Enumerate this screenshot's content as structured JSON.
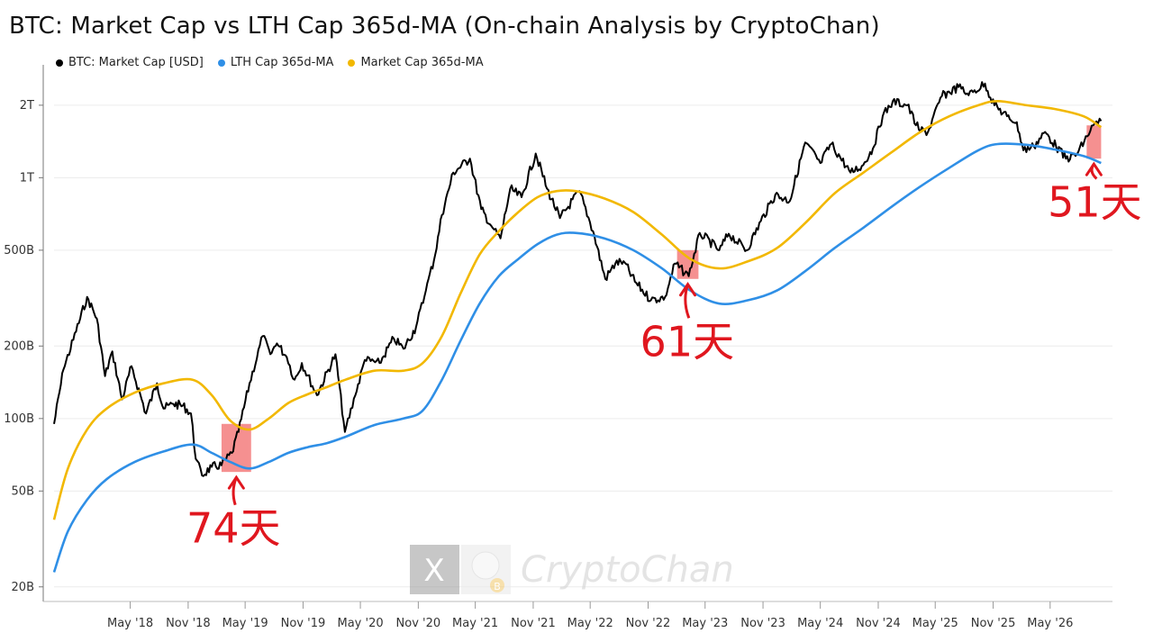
{
  "chart_data": {
    "type": "line",
    "title": "BTC: Market Cap vs LTH Cap 365d-MA (On-chain Analysis by CryptoChan)",
    "y_scale": "log",
    "ylim": [
      18000000000,
      2700000000000
    ],
    "xlim": [
      "2017-09-01",
      "2026-11-15"
    ],
    "grid": true,
    "legend_position": "top-left",
    "y_ticks": [
      {
        "value": 20000000000,
        "label": "20B"
      },
      {
        "value": 50000000000,
        "label": "50B"
      },
      {
        "value": 100000000000,
        "label": "100B"
      },
      {
        "value": 200000000000,
        "label": "200B"
      },
      {
        "value": 500000000000,
        "label": "500B"
      },
      {
        "value": 1000000000000,
        "label": "1T"
      },
      {
        "value": 2000000000000,
        "label": "2T"
      }
    ],
    "x_ticks": [
      {
        "value": "2018-05-01",
        "label": "May '18"
      },
      {
        "value": "2018-11-01",
        "label": "Nov '18"
      },
      {
        "value": "2019-05-01",
        "label": "May '19"
      },
      {
        "value": "2019-11-01",
        "label": "Nov '19"
      },
      {
        "value": "2020-05-01",
        "label": "May '20"
      },
      {
        "value": "2020-11-01",
        "label": "Nov '20"
      },
      {
        "value": "2021-05-01",
        "label": "May '21"
      },
      {
        "value": "2021-11-01",
        "label": "Nov '21"
      },
      {
        "value": "2022-05-01",
        "label": "May '22"
      },
      {
        "value": "2022-11-01",
        "label": "Nov '22"
      },
      {
        "value": "2023-05-01",
        "label": "May '23"
      },
      {
        "value": "2023-11-01",
        "label": "Nov '23"
      },
      {
        "value": "2024-05-01",
        "label": "May '24"
      },
      {
        "value": "2024-11-01",
        "label": "Nov '24"
      },
      {
        "value": "2025-05-01",
        "label": "May '25"
      },
      {
        "value": "2025-11-01",
        "label": "Nov '25"
      },
      {
        "value": "2026-05-01",
        "label": "May '26"
      }
    ],
    "series": [
      {
        "name": "BTC: Market Cap [USD]",
        "color": "#000000",
        "points": [
          [
            "2017-09-01",
            95000000000
          ],
          [
            "2017-10-01",
            160000000000
          ],
          [
            "2017-11-10",
            230000000000
          ],
          [
            "2017-12-15",
            320000000000
          ],
          [
            "2018-01-15",
            260000000000
          ],
          [
            "2018-02-10",
            150000000000
          ],
          [
            "2018-03-05",
            190000000000
          ],
          [
            "2018-04-05",
            120000000000
          ],
          [
            "2018-05-05",
            165000000000
          ],
          [
            "2018-06-20",
            105000000000
          ],
          [
            "2018-07-25",
            140000000000
          ],
          [
            "2018-08-15",
            110000000000
          ],
          [
            "2018-09-15",
            115000000000
          ],
          [
            "2018-10-15",
            113000000000
          ],
          [
            "2018-11-10",
            105000000000
          ],
          [
            "2018-11-25",
            68000000000
          ],
          [
            "2018-12-15",
            58000000000
          ],
          [
            "2019-01-15",
            63000000000
          ],
          [
            "2019-02-15",
            64000000000
          ],
          [
            "2019-03-20",
            72000000000
          ],
          [
            "2019-04-10",
            88000000000
          ],
          [
            "2019-05-15",
            140000000000
          ],
          [
            "2019-06-26",
            220000000000
          ],
          [
            "2019-07-20",
            185000000000
          ],
          [
            "2019-08-10",
            205000000000
          ],
          [
            "2019-09-10",
            180000000000
          ],
          [
            "2019-10-05",
            145000000000
          ],
          [
            "2019-10-28",
            170000000000
          ],
          [
            "2019-12-15",
            125000000000
          ],
          [
            "2020-02-12",
            185000000000
          ],
          [
            "2020-03-13",
            88000000000
          ],
          [
            "2020-04-15",
            125000000000
          ],
          [
            "2020-05-15",
            175000000000
          ],
          [
            "2020-07-01",
            170000000000
          ],
          [
            "2020-08-15",
            215000000000
          ],
          [
            "2020-09-15",
            195000000000
          ],
          [
            "2020-10-25",
            240000000000
          ],
          [
            "2020-11-25",
            340000000000
          ],
          [
            "2020-12-25",
            480000000000
          ],
          [
            "2021-01-15",
            700000000000
          ],
          [
            "2021-02-20",
            1050000000000
          ],
          [
            "2021-04-14",
            1200000000000
          ],
          [
            "2021-05-20",
            740000000000
          ],
          [
            "2021-06-25",
            620000000000
          ],
          [
            "2021-07-20",
            560000000000
          ],
          [
            "2021-08-20",
            900000000000
          ],
          [
            "2021-09-25",
            830000000000
          ],
          [
            "2021-11-09",
            1260000000000
          ],
          [
            "2021-12-15",
            900000000000
          ],
          [
            "2022-01-25",
            680000000000
          ],
          [
            "2022-03-28",
            880000000000
          ],
          [
            "2022-05-10",
            600000000000
          ],
          [
            "2022-06-18",
            380000000000
          ],
          [
            "2022-07-20",
            440000000000
          ],
          [
            "2022-08-15",
            450000000000
          ],
          [
            "2022-09-20",
            370000000000
          ],
          [
            "2022-11-10",
            310000000000
          ],
          [
            "2022-12-25",
            320000000000
          ],
          [
            "2023-01-25",
            440000000000
          ],
          [
            "2023-03-10",
            390000000000
          ],
          [
            "2023-04-14",
            590000000000
          ],
          [
            "2023-06-15",
            500000000000
          ],
          [
            "2023-07-15",
            585000000000
          ],
          [
            "2023-09-10",
            500000000000
          ],
          [
            "2023-10-25",
            660000000000
          ],
          [
            "2023-12-10",
            850000000000
          ],
          [
            "2024-01-25",
            800000000000
          ],
          [
            "2024-03-14",
            1400000000000
          ],
          [
            "2024-05-01",
            1150000000000
          ],
          [
            "2024-06-05",
            1380000000000
          ],
          [
            "2024-08-05",
            1050000000000
          ],
          [
            "2024-09-10",
            1120000000000
          ],
          [
            "2024-10-15",
            1320000000000
          ],
          [
            "2024-11-15",
            1800000000000
          ],
          [
            "2024-12-17",
            2080000000000
          ],
          [
            "2025-02-01",
            2000000000000
          ],
          [
            "2025-03-10",
            1580000000000
          ],
          [
            "2025-04-08",
            1550000000000
          ],
          [
            "2025-05-22",
            2180000000000
          ],
          [
            "2025-07-14",
            2380000000000
          ],
          [
            "2025-08-15",
            2200000000000
          ],
          [
            "2025-10-06",
            2460000000000
          ],
          [
            "2025-11-05",
            2000000000000
          ],
          [
            "2025-12-15",
            1800000000000
          ],
          [
            "2026-01-15",
            1700000000000
          ],
          [
            "2026-02-05",
            1300000000000
          ],
          [
            "2026-03-10",
            1350000000000
          ],
          [
            "2026-04-15",
            1550000000000
          ],
          [
            "2026-05-20",
            1350000000000
          ],
          [
            "2026-06-20",
            1200000000000
          ],
          [
            "2026-07-25",
            1250000000000
          ],
          [
            "2026-09-15",
            1650000000000
          ],
          [
            "2026-10-10",
            1720000000000
          ]
        ]
      },
      {
        "name": "LTH Cap 365d-MA",
        "color": "#2f8fe6",
        "points": [
          [
            "2017-09-01",
            23000000000
          ],
          [
            "2017-10-15",
            34000000000
          ],
          [
            "2017-12-15",
            46000000000
          ],
          [
            "2018-02-15",
            56000000000
          ],
          [
            "2018-05-15",
            66000000000
          ],
          [
            "2018-08-15",
            73000000000
          ],
          [
            "2018-11-15",
            78000000000
          ],
          [
            "2019-01-15",
            72000000000
          ],
          [
            "2019-03-15",
            66000000000
          ],
          [
            "2019-05-15",
            62000000000
          ],
          [
            "2019-07-15",
            66000000000
          ],
          [
            "2019-09-15",
            72000000000
          ],
          [
            "2019-11-15",
            76000000000
          ],
          [
            "2020-01-15",
            79000000000
          ],
          [
            "2020-03-15",
            84000000000
          ],
          [
            "2020-06-15",
            94000000000
          ],
          [
            "2020-09-15",
            100000000000
          ],
          [
            "2020-11-15",
            108000000000
          ],
          [
            "2021-01-15",
            145000000000
          ],
          [
            "2021-03-15",
            210000000000
          ],
          [
            "2021-05-15",
            300000000000
          ],
          [
            "2021-07-15",
            390000000000
          ],
          [
            "2021-09-15",
            460000000000
          ],
          [
            "2021-11-15",
            530000000000
          ],
          [
            "2022-01-15",
            580000000000
          ],
          [
            "2022-03-15",
            590000000000
          ],
          [
            "2022-06-15",
            560000000000
          ],
          [
            "2022-09-15",
            500000000000
          ],
          [
            "2022-12-15",
            420000000000
          ],
          [
            "2023-03-15",
            340000000000
          ],
          [
            "2023-06-15",
            300000000000
          ],
          [
            "2023-09-15",
            310000000000
          ],
          [
            "2023-12-15",
            340000000000
          ],
          [
            "2024-03-15",
            410000000000
          ],
          [
            "2024-06-15",
            510000000000
          ],
          [
            "2024-09-15",
            620000000000
          ],
          [
            "2024-12-15",
            760000000000
          ],
          [
            "2025-03-15",
            920000000000
          ],
          [
            "2025-06-15",
            1100000000000
          ],
          [
            "2025-09-15",
            1300000000000
          ],
          [
            "2025-11-15",
            1380000000000
          ],
          [
            "2026-02-15",
            1370000000000
          ],
          [
            "2026-05-15",
            1310000000000
          ],
          [
            "2026-08-15",
            1230000000000
          ],
          [
            "2026-10-10",
            1150000000000
          ]
        ]
      },
      {
        "name": "Market Cap 365d-MA",
        "color": "#f2b800",
        "points": [
          [
            "2017-09-01",
            38000000000
          ],
          [
            "2017-10-15",
            62000000000
          ],
          [
            "2017-12-15",
            90000000000
          ],
          [
            "2018-02-15",
            110000000000
          ],
          [
            "2018-05-15",
            128000000000
          ],
          [
            "2018-08-15",
            140000000000
          ],
          [
            "2018-11-15",
            145000000000
          ],
          [
            "2019-01-15",
            125000000000
          ],
          [
            "2019-03-15",
            98000000000
          ],
          [
            "2019-05-15",
            90000000000
          ],
          [
            "2019-07-15",
            100000000000
          ],
          [
            "2019-09-15",
            116000000000
          ],
          [
            "2019-11-15",
            126000000000
          ],
          [
            "2020-01-15",
            135000000000
          ],
          [
            "2020-03-15",
            145000000000
          ],
          [
            "2020-06-15",
            158000000000
          ],
          [
            "2020-09-15",
            158000000000
          ],
          [
            "2020-11-15",
            170000000000
          ],
          [
            "2021-01-15",
            220000000000
          ],
          [
            "2021-03-15",
            330000000000
          ],
          [
            "2021-05-15",
            480000000000
          ],
          [
            "2021-07-15",
            600000000000
          ],
          [
            "2021-09-15",
            720000000000
          ],
          [
            "2021-11-15",
            830000000000
          ],
          [
            "2022-01-15",
            880000000000
          ],
          [
            "2022-03-15",
            880000000000
          ],
          [
            "2022-06-15",
            820000000000
          ],
          [
            "2022-09-15",
            720000000000
          ],
          [
            "2022-12-15",
            580000000000
          ],
          [
            "2023-03-15",
            460000000000
          ],
          [
            "2023-06-15",
            420000000000
          ],
          [
            "2023-09-15",
            450000000000
          ],
          [
            "2023-12-15",
            510000000000
          ],
          [
            "2024-03-15",
            650000000000
          ],
          [
            "2024-06-15",
            860000000000
          ],
          [
            "2024-09-15",
            1050000000000
          ],
          [
            "2024-12-15",
            1280000000000
          ],
          [
            "2025-03-15",
            1550000000000
          ],
          [
            "2025-06-15",
            1800000000000
          ],
          [
            "2025-09-15",
            2000000000000
          ],
          [
            "2025-11-15",
            2080000000000
          ],
          [
            "2026-02-15",
            2000000000000
          ],
          [
            "2026-05-15",
            1930000000000
          ],
          [
            "2026-08-15",
            1800000000000
          ],
          [
            "2026-10-10",
            1620000000000
          ]
        ]
      }
    ],
    "highlights": [
      {
        "x_start": "2019-02-15",
        "x_end": "2019-05-20",
        "y_low": 60000000000,
        "y_high": 95000000000
      },
      {
        "x_start": "2023-02-01",
        "x_end": "2023-04-10",
        "y_low": 380000000000,
        "y_high": 500000000000
      },
      {
        "x_start": "2026-08-25",
        "x_end": "2026-10-10",
        "y_low": 1200000000000,
        "y_high": 1650000000000
      }
    ],
    "annotations": [
      {
        "text": "74天",
        "x": "2019-03-25",
        "y": 30500000000
      },
      {
        "text": "61天",
        "x": "2023-03-05",
        "y": 182000000000
      },
      {
        "text": "51天",
        "x": "2026-09-20",
        "y": 690000000000
      }
    ],
    "annotation_color": "#e0171f",
    "highlight_color": "#f26b6b"
  },
  "watermark": {
    "text": "CryptoChan",
    "x_logo": "X",
    "badge": "B"
  }
}
